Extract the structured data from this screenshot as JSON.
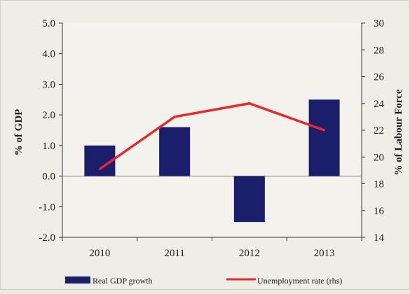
{
  "chart_data": {
    "type": "bar+line",
    "categories": [
      "2010",
      "2011",
      "2012",
      "2013"
    ],
    "series": [
      {
        "name": "Real GDP growth",
        "type": "bar",
        "axis": "left",
        "color": "#1b1f6b",
        "values": [
          1.0,
          1.6,
          -1.5,
          2.5
        ]
      },
      {
        "name": "Unemployment rate (rhs)",
        "type": "line",
        "axis": "right",
        "color": "#e8282a",
        "values": [
          19.1,
          23.0,
          24.0,
          22.0
        ]
      }
    ],
    "left_axis": {
      "label": "% of GDP",
      "ylim": [
        -2.0,
        5.0
      ],
      "ticks": [
        "-2.0",
        "-1.0",
        "0.0",
        "1.0",
        "2.0",
        "3.0",
        "4.0",
        "5.0"
      ]
    },
    "right_axis": {
      "label": "% of Labour Force",
      "ylim": [
        14,
        30
      ],
      "ticks": [
        "14",
        "16",
        "18",
        "20",
        "22",
        "24",
        "26",
        "28",
        "30"
      ]
    },
    "grid": false,
    "legend_position": "bottom"
  }
}
